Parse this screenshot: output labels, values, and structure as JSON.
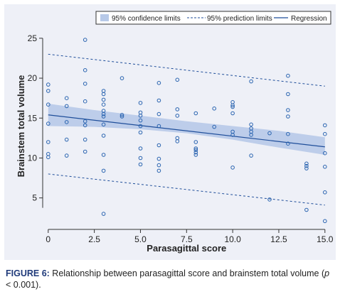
{
  "chart_data": {
    "type": "scatter",
    "xlabel": "Parasagittal score",
    "ylabel": "Brainstem total volume",
    "xlim": [
      -0.3,
      15.2
    ],
    "ylim": [
      1.5,
      26.5
    ],
    "x_ticks": [
      "0",
      "2.5",
      "5.0",
      "7.5",
      "10.0",
      "12.5",
      "15.0"
    ],
    "x_tick_values": [
      0,
      2.5,
      5,
      7.5,
      10,
      12.5,
      15
    ],
    "y_ticks": [
      "5",
      "10",
      "15",
      "20",
      "25"
    ],
    "y_tick_values": [
      5,
      10,
      15,
      20,
      25
    ],
    "legend": {
      "placement": "top-right",
      "items": [
        "95% confidence limits",
        "95% prediction limits",
        "Regression"
      ]
    },
    "regression": {
      "x": [
        0,
        15
      ],
      "y": [
        15.4,
        11.4
      ]
    },
    "confidence_limits": {
      "x": [
        0,
        2.5,
        5,
        7.5,
        10,
        12.5,
        15
      ],
      "lower": [
        14.0,
        13.9,
        13.6,
        13.1,
        12.3,
        11.3,
        10.4
      ],
      "upper": [
        16.8,
        16.0,
        15.3,
        14.6,
        14.0,
        13.4,
        12.6
      ]
    },
    "prediction_limits": {
      "x": [
        0,
        15
      ],
      "lower": [
        8.0,
        4.1
      ],
      "upper": [
        23.0,
        19.0
      ]
    },
    "points": [
      [
        0,
        19.2
      ],
      [
        0,
        18.4
      ],
      [
        0,
        16.7
      ],
      [
        0,
        14.3
      ],
      [
        0,
        12.0
      ],
      [
        0,
        10.5
      ],
      [
        0,
        10.1
      ],
      [
        1,
        17.5
      ],
      [
        1,
        16.5
      ],
      [
        1,
        14.5
      ],
      [
        1,
        12.3
      ],
      [
        1,
        10.3
      ],
      [
        2,
        24.8
      ],
      [
        2,
        21.0
      ],
      [
        2,
        19.3
      ],
      [
        2,
        17.1
      ],
      [
        2,
        14.6
      ],
      [
        2,
        14.1
      ],
      [
        2,
        12.3
      ],
      [
        2,
        10.8
      ],
      [
        3,
        18.4
      ],
      [
        3,
        18.0
      ],
      [
        3,
        17.3
      ],
      [
        3,
        16.7
      ],
      [
        3,
        15.9
      ],
      [
        3,
        15.5
      ],
      [
        3,
        15.2
      ],
      [
        3,
        14.2
      ],
      [
        3,
        12.8
      ],
      [
        3,
        10.4
      ],
      [
        3,
        8.4
      ],
      [
        3,
        3.0
      ],
      [
        4,
        20.0
      ],
      [
        4,
        15.4
      ],
      [
        4,
        15.2
      ],
      [
        5,
        16.9
      ],
      [
        5,
        15.7
      ],
      [
        5,
        15.3
      ],
      [
        5,
        14.7
      ],
      [
        5,
        14.0
      ],
      [
        5,
        13.2
      ],
      [
        5,
        11.2
      ],
      [
        5,
        10.0
      ],
      [
        5,
        9.2
      ],
      [
        6,
        19.4
      ],
      [
        6,
        17.2
      ],
      [
        6,
        15.5
      ],
      [
        6,
        14.0
      ],
      [
        6,
        11.6
      ],
      [
        6,
        9.9
      ],
      [
        6,
        9.1
      ],
      [
        6,
        8.4
      ],
      [
        7,
        19.8
      ],
      [
        7,
        16.1
      ],
      [
        7,
        15.3
      ],
      [
        7,
        12.5
      ],
      [
        7,
        12.1
      ],
      [
        8,
        15.6
      ],
      [
        8,
        12.0
      ],
      [
        8,
        11.2
      ],
      [
        8,
        11.0
      ],
      [
        8,
        10.7
      ],
      [
        8,
        10.4
      ],
      [
        9,
        16.2
      ],
      [
        9,
        13.9
      ],
      [
        10,
        17.0
      ],
      [
        10,
        16.6
      ],
      [
        10,
        16.4
      ],
      [
        10,
        15.6
      ],
      [
        10,
        13.3
      ],
      [
        10,
        12.9
      ],
      [
        10,
        8.8
      ],
      [
        11,
        19.6
      ],
      [
        11,
        14.2
      ],
      [
        11,
        13.7
      ],
      [
        11,
        13.3
      ],
      [
        11,
        12.9
      ],
      [
        11,
        10.3
      ],
      [
        12,
        13.1
      ],
      [
        12,
        4.8
      ],
      [
        13,
        20.3
      ],
      [
        13,
        18.0
      ],
      [
        13,
        16.0
      ],
      [
        13,
        15.2
      ],
      [
        13,
        13.0
      ],
      [
        13,
        11.8
      ],
      [
        14,
        9.3
      ],
      [
        14,
        9.0
      ],
      [
        14,
        8.7
      ],
      [
        14,
        3.5
      ],
      [
        15,
        14.1
      ],
      [
        15,
        13.0
      ],
      [
        15,
        10.6
      ],
      [
        15,
        8.9
      ],
      [
        15,
        5.7
      ],
      [
        15,
        2.1
      ]
    ],
    "colors": {
      "points": "#2a64b0",
      "regression": "#1f4e9a",
      "confidence_band": "#b7c9e8",
      "prediction_line": "#1f4e9a",
      "panel_background": "#eef0f7"
    }
  },
  "caption": {
    "label": "FIGURE 6:",
    "text": " Relationship between parasagittal score and brainstem total volume (",
    "p_symbol": "p",
    "p_rest": " < 0.001)."
  }
}
